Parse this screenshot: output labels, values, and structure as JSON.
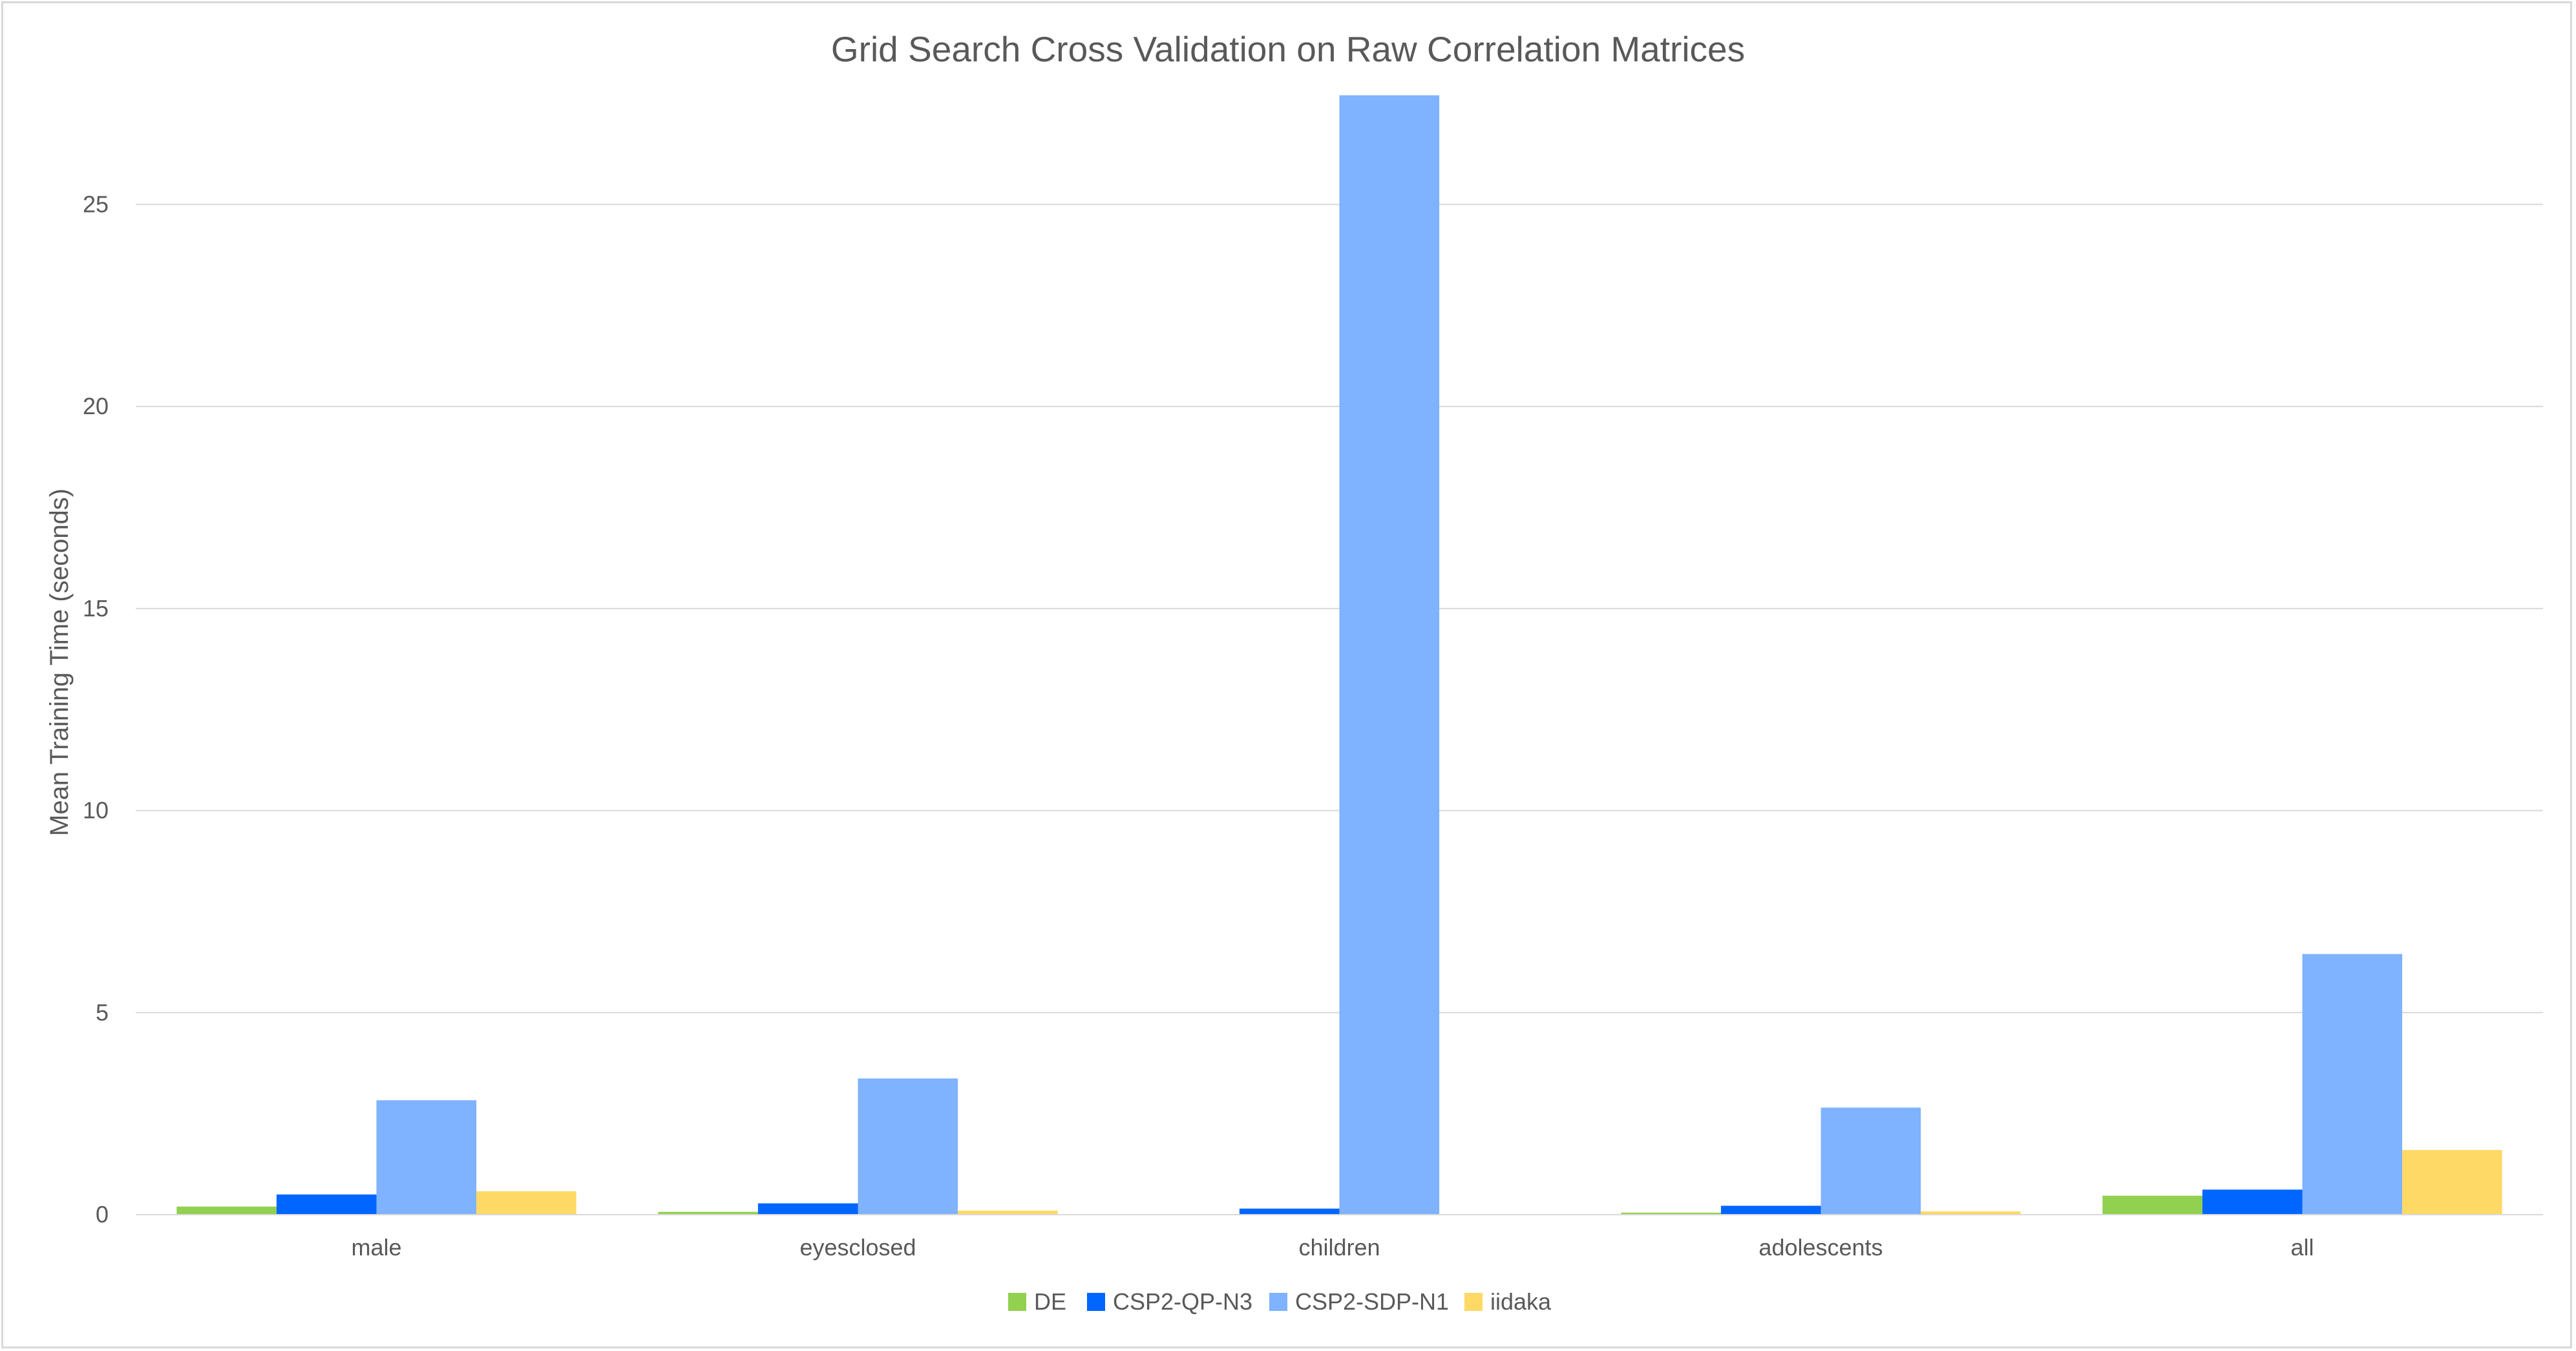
{
  "chart_data": {
    "type": "bar",
    "title": "Grid Search Cross Validation on Raw Correlation Matrices",
    "xlabel": "",
    "ylabel": "Mean Training Time (seconds)",
    "categories": [
      "male",
      "eyesclosed",
      "children",
      "adolescents",
      "all"
    ],
    "ylim": [
      0,
      27.5
    ],
    "yticks": [
      0,
      5,
      10,
      15,
      20,
      25
    ],
    "grid": true,
    "legend_position": "bottom",
    "series": [
      {
        "name": "DE",
        "color": "#92d050",
        "values": [
          0.2,
          0.07,
          0.0,
          0.05,
          0.47
        ]
      },
      {
        "name": "CSP2-QP-N3",
        "color": "#0066ff",
        "values": [
          0.5,
          0.28,
          0.15,
          0.22,
          0.62
        ]
      },
      {
        "name": "CSP2-SDP-N1",
        "color": "#7fb2ff",
        "values": [
          2.83,
          3.37,
          27.7,
          2.65,
          6.45
        ]
      },
      {
        "name": "iidaka",
        "color": "#ffd966",
        "values": [
          0.58,
          0.1,
          0.0,
          0.08,
          1.6
        ]
      }
    ]
  }
}
